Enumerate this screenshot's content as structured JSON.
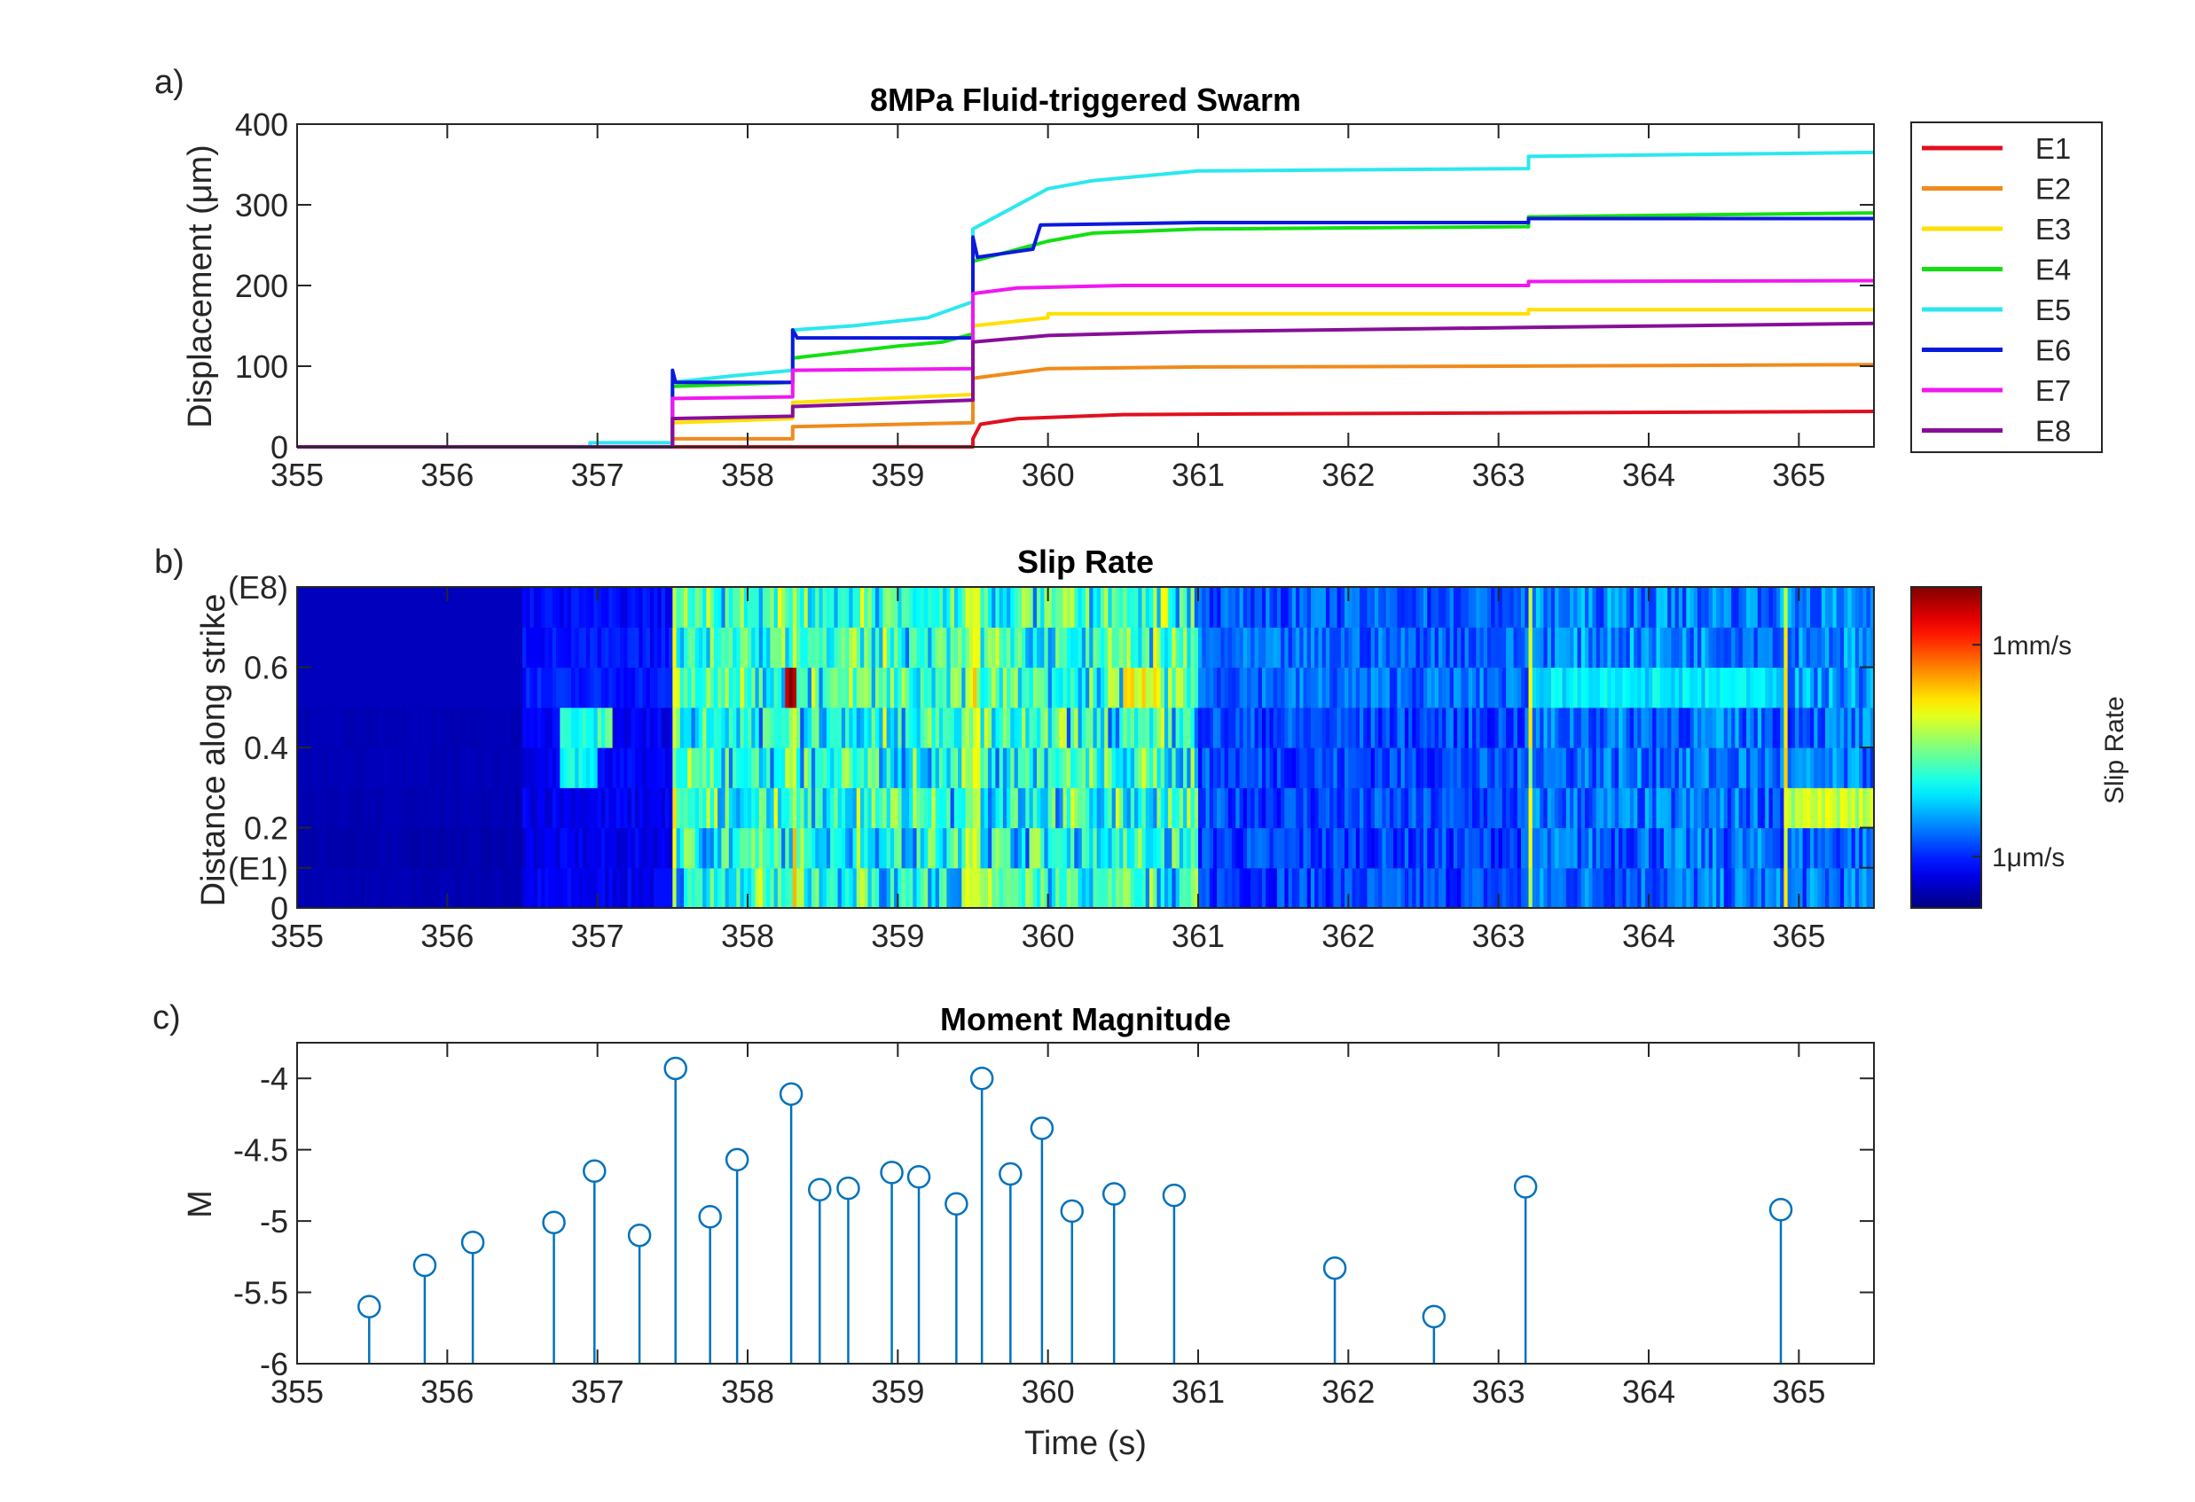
{
  "colors": {
    "axis": "#262626",
    "stem": "#0072BD"
  },
  "panel_letters": [
    "a)",
    "b)",
    "c)"
  ],
  "chart_data": [
    {
      "id": "a",
      "type": "line",
      "title": "8MPa Fluid-triggered Swarm",
      "xlabel": "",
      "ylabel": "Displacement (μm)",
      "xlim": [
        355,
        365.5
      ],
      "ylim": [
        0,
        400
      ],
      "xticks": [
        355,
        356,
        357,
        358,
        359,
        360,
        361,
        362,
        363,
        364,
        365
      ],
      "yticks": [
        0,
        100,
        200,
        300,
        400
      ],
      "legend_position": "outside-right",
      "series": [
        {
          "name": "E1",
          "color": "#E0101F",
          "points": [
            [
              355,
              0
            ],
            [
              359.5,
              0
            ],
            [
              359.5,
              10
            ],
            [
              359.55,
              28
            ],
            [
              359.8,
              35
            ],
            [
              360.5,
              40
            ],
            [
              361.5,
              41
            ],
            [
              363,
              42
            ],
            [
              365.5,
              44
            ]
          ]
        },
        {
          "name": "E2",
          "color": "#F08A1C",
          "points": [
            [
              355,
              0
            ],
            [
              357.5,
              0
            ],
            [
              357.5,
              10
            ],
            [
              358.3,
              10
            ],
            [
              358.3,
              25
            ],
            [
              359.5,
              30
            ],
            [
              359.5,
              85
            ],
            [
              360,
              97
            ],
            [
              361,
              99
            ],
            [
              363,
              100
            ],
            [
              365.5,
              102
            ]
          ]
        },
        {
          "name": "E3",
          "color": "#FFE000",
          "points": [
            [
              355,
              0
            ],
            [
              357.5,
              0
            ],
            [
              357.5,
              30
            ],
            [
              358.3,
              35
            ],
            [
              358.3,
              55
            ],
            [
              359.5,
              65
            ],
            [
              359.5,
              150
            ],
            [
              360,
              160
            ],
            [
              360,
              165
            ],
            [
              361,
              165
            ],
            [
              363.2,
              165
            ],
            [
              363.2,
              170
            ],
            [
              365.5,
              170
            ]
          ]
        },
        {
          "name": "E4",
          "color": "#12E012",
          "points": [
            [
              355,
              0
            ],
            [
              357.5,
              0
            ],
            [
              357.5,
              75
            ],
            [
              358.3,
              80
            ],
            [
              358.3,
              110
            ],
            [
              359,
              125
            ],
            [
              359.3,
              130
            ],
            [
              359.5,
              140
            ],
            [
              359.5,
              230
            ],
            [
              359.8,
              245
            ],
            [
              360,
              255
            ],
            [
              360.3,
              265
            ],
            [
              361,
              270
            ],
            [
              363.2,
              273
            ],
            [
              363.2,
              285
            ],
            [
              365.5,
              290
            ]
          ]
        },
        {
          "name": "E5",
          "color": "#2BE8EE",
          "points": [
            [
              355,
              0
            ],
            [
              356.95,
              0
            ],
            [
              356.95,
              5
            ],
            [
              357.5,
              5
            ],
            [
              357.5,
              80
            ],
            [
              357.9,
              88
            ],
            [
              358.3,
              95
            ],
            [
              358.3,
              145
            ],
            [
              358.7,
              150
            ],
            [
              359.2,
              160
            ],
            [
              359.5,
              180
            ],
            [
              359.5,
              270
            ],
            [
              359.7,
              290
            ],
            [
              359.8,
              300
            ],
            [
              359.95,
              315
            ],
            [
              360,
              320
            ],
            [
              360.3,
              330
            ],
            [
              361,
              342
            ],
            [
              363.2,
              345
            ],
            [
              363.2,
              360
            ],
            [
              365.5,
              365
            ]
          ]
        },
        {
          "name": "E6",
          "color": "#0A1ADC",
          "points": [
            [
              355,
              0
            ],
            [
              357.5,
              0
            ],
            [
              357.5,
              95
            ],
            [
              357.52,
              80
            ],
            [
              358.3,
              80
            ],
            [
              358.3,
              145
            ],
            [
              358.33,
              135
            ],
            [
              359.5,
              135
            ],
            [
              359.5,
              260
            ],
            [
              359.53,
              235
            ],
            [
              359.9,
              245
            ],
            [
              359.95,
              275
            ],
            [
              361,
              278
            ],
            [
              363.2,
              278
            ],
            [
              363.2,
              283
            ],
            [
              365.5,
              283
            ]
          ]
        },
        {
          "name": "E7",
          "color": "#F018F0",
          "points": [
            [
              355,
              0
            ],
            [
              357.5,
              0
            ],
            [
              357.5,
              60
            ],
            [
              358.3,
              62
            ],
            [
              358.3,
              95
            ],
            [
              359.5,
              97
            ],
            [
              359.5,
              190
            ],
            [
              359.8,
              197
            ],
            [
              360.5,
              200
            ],
            [
              363.2,
              200
            ],
            [
              363.2,
              205
            ],
            [
              365.5,
              206
            ]
          ]
        },
        {
          "name": "E8",
          "color": "#880E98",
          "points": [
            [
              355,
              0
            ],
            [
              357.5,
              0
            ],
            [
              357.5,
              35
            ],
            [
              358.3,
              38
            ],
            [
              358.3,
              50
            ],
            [
              359.5,
              58
            ],
            [
              359.5,
              130
            ],
            [
              360,
              138
            ],
            [
              361,
              143
            ],
            [
              363.2,
              148
            ],
            [
              365.5,
              153
            ]
          ]
        }
      ]
    },
    {
      "id": "b",
      "type": "heatmap",
      "title": "Slip Rate",
      "xlabel": "",
      "ylabel": "Distance along strike",
      "xlim": [
        355,
        365.5
      ],
      "ylim": [
        0,
        0.8
      ],
      "xticks": [
        355,
        356,
        357,
        358,
        359,
        360,
        361,
        362,
        363,
        364,
        365
      ],
      "ytick_labels": [
        {
          "value": 0,
          "text": "0"
        },
        {
          "value": 0.1,
          "text": "(E1)"
        },
        {
          "value": 0.2,
          "text": "0.2"
        },
        {
          "value": 0.4,
          "text": "0.4"
        },
        {
          "value": 0.6,
          "text": "0.6"
        },
        {
          "value": 0.8,
          "text": "(E8)"
        }
      ],
      "colormap": "jet",
      "colorbar": {
        "label": "Slip Rate",
        "tick_labels": [
          {
            "level": 0.82,
            "text": "1mm/s"
          },
          {
            "level": 0.16,
            "text": "1μm/s"
          }
        ]
      },
      "row_base_levels": [
        0.12,
        0.1,
        0.12,
        0.14,
        0.13,
        0.28,
        0.24,
        0.2
      ],
      "time_base_levels": [
        {
          "x0": 355,
          "x1": 356.5,
          "level": 0.02
        },
        {
          "x0": 356.5,
          "x1": 357.5,
          "level": 0.08
        },
        {
          "x0": 357.5,
          "x1": 361,
          "level": 0.28
        },
        {
          "x0": 361,
          "x1": 363.2,
          "level": 0.16
        },
        {
          "x0": 363.2,
          "x1": 365.5,
          "level": 0.2
        }
      ],
      "bright_blocks": [
        {
          "x0": 356.75,
          "x1": 357.0,
          "row0": 3,
          "row1": 4,
          "level": 0.38
        },
        {
          "x0": 357.0,
          "x1": 357.1,
          "row0": 4,
          "row1": 4,
          "level": 0.45
        },
        {
          "x0": 358.25,
          "x1": 358.32,
          "row0": 5,
          "row1": 5,
          "level": 0.95
        },
        {
          "x0": 359.45,
          "x1": 359.55,
          "row0": 0,
          "row1": 7,
          "level": 0.55
        },
        {
          "x0": 359.5,
          "x1": 360.0,
          "row0": 0,
          "row1": 0,
          "level": 0.42
        },
        {
          "x0": 360.5,
          "x1": 360.75,
          "row0": 5,
          "row1": 5,
          "level": 0.6
        },
        {
          "x0": 363.2,
          "x1": 364.9,
          "row0": 5,
          "row1": 5,
          "level": 0.35
        },
        {
          "x0": 364.9,
          "x1": 365.5,
          "row0": 2,
          "row1": 2,
          "level": 0.55
        }
      ]
    },
    {
      "id": "c",
      "type": "stem",
      "title": "Moment Magnitude",
      "xlabel": "Time (s)",
      "ylabel": "M",
      "xlim": [
        355,
        365.5
      ],
      "ylim": [
        -6,
        -3.75
      ],
      "xticks": [
        355,
        356,
        357,
        358,
        359,
        360,
        361,
        362,
        363,
        364,
        365
      ],
      "ytick_labels": [
        {
          "value": -6,
          "text": "-6"
        },
        {
          "value": -5.5,
          "text": "-5.5"
        },
        {
          "value": -5,
          "text": "-5"
        },
        {
          "value": -4.5,
          "text": "-4.5"
        },
        {
          "value": -4,
          "text": "-4"
        }
      ],
      "points": [
        [
          355.48,
          -5.6
        ],
        [
          355.85,
          -5.31
        ],
        [
          356.17,
          -5.15
        ],
        [
          356.71,
          -5.01
        ],
        [
          356.98,
          -4.65
        ],
        [
          357.28,
          -5.1
        ],
        [
          357.52,
          -3.93
        ],
        [
          357.75,
          -4.97
        ],
        [
          357.93,
          -4.57
        ],
        [
          358.29,
          -4.11
        ],
        [
          358.48,
          -4.78
        ],
        [
          358.67,
          -4.77
        ],
        [
          358.96,
          -4.66
        ],
        [
          359.14,
          -4.69
        ],
        [
          359.39,
          -4.88
        ],
        [
          359.56,
          -4.0
        ],
        [
          359.75,
          -4.67
        ],
        [
          359.96,
          -4.35
        ],
        [
          360.16,
          -4.93
        ],
        [
          360.44,
          -4.81
        ],
        [
          360.84,
          -4.82
        ],
        [
          361.91,
          -5.33
        ],
        [
          362.57,
          -5.67
        ],
        [
          363.18,
          -4.76
        ],
        [
          364.88,
          -4.92
        ]
      ]
    }
  ]
}
